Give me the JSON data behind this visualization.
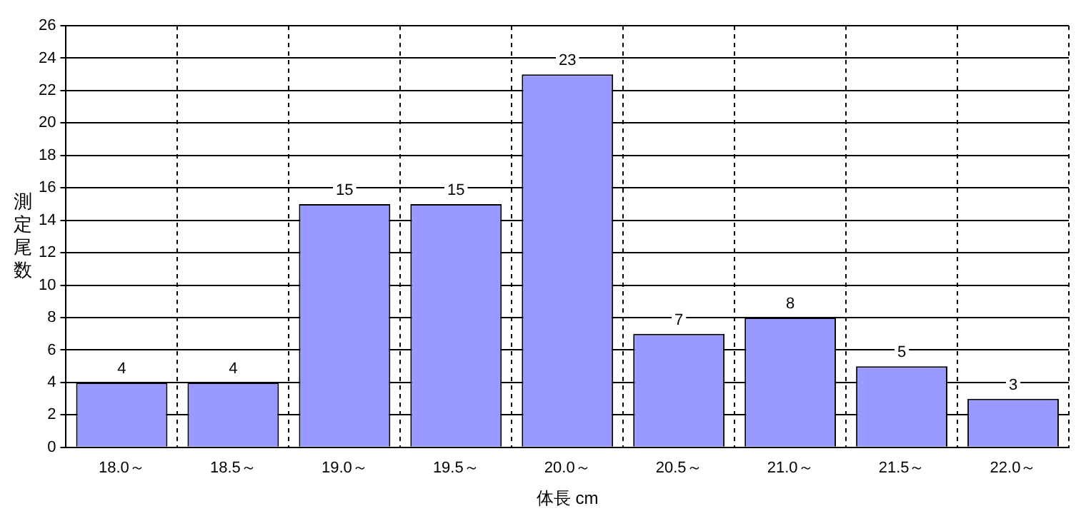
{
  "chart_data": {
    "type": "bar",
    "xlabel": "体長 cm",
    "ylabel": "測定尾数",
    "categories": [
      "18.0～",
      "18.5～",
      "19.0～",
      "19.5～",
      "20.0～",
      "20.5～",
      "21.0～",
      "21.5～",
      "22.0～"
    ],
    "values": [
      4,
      4,
      15,
      15,
      23,
      7,
      8,
      5,
      3
    ],
    "color": "#9999ff",
    "ylim": [
      0,
      26
    ],
    "yticks": [
      0,
      2,
      4,
      6,
      8,
      10,
      12,
      14,
      16,
      18,
      20,
      22,
      24,
      26
    ],
    "grid": true,
    "data_labels": true,
    "legend": false
  }
}
